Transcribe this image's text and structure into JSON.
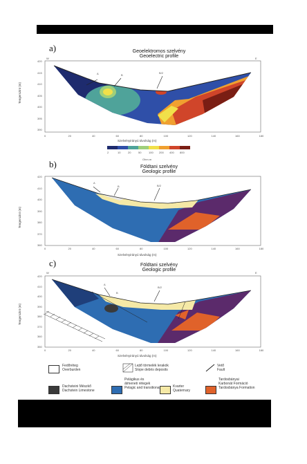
{
  "panels": [
    {
      "letter": "a)",
      "title_hu": "Geoelektromos szelvény",
      "title_en": "Geoelectric profile",
      "corner_left": "W",
      "corner_right": "E",
      "xlabel": "Szelvényirányú távolság (m)",
      "ylabel": "Tengerszint (m)",
      "y_ticks": [
        "420",
        "415",
        "410",
        "405",
        "400",
        "395",
        "390"
      ],
      "x_ticks": [
        "0",
        "20",
        "40",
        "60",
        "80",
        "100",
        "120",
        "140",
        "160",
        "180"
      ],
      "labels": [
        "A",
        "B",
        "B/2"
      ]
    },
    {
      "letter": "b)",
      "title_hu": "Földtani szelvény",
      "title_en": "Geologic profile",
      "xlabel": "Szelvényirányú távolság (m)",
      "ylabel": "Tengerszint (m)",
      "y_ticks": [
        "420",
        "410",
        "400",
        "390",
        "380",
        "370",
        "360"
      ],
      "x_ticks": [
        "0",
        "20",
        "40",
        "60",
        "80",
        "100",
        "120",
        "140",
        "160",
        "180"
      ],
      "labels": [
        "A",
        "B",
        "B/2"
      ]
    },
    {
      "letter": "c)",
      "title_hu": "Földtani szelvény",
      "title_en": "Geologic profile",
      "corner_left": "W",
      "corner_right": "E",
      "xlabel": "Szelvényirányú távolság (m)",
      "ylabel": "Tengerszint (m)",
      "y_ticks": [
        "420",
        "410",
        "400",
        "390",
        "380",
        "370",
        "360",
        "350"
      ],
      "x_ticks": [
        "0",
        "20",
        "40",
        "60",
        "80",
        "100",
        "120",
        "140",
        "160",
        "180"
      ],
      "labels": [
        "A",
        "B",
        "B/2"
      ]
    }
  ],
  "colorbar": {
    "unit": "Ohm.m",
    "ticks": [
      "2",
      "10",
      "20",
      "50",
      "100",
      "200",
      "400",
      "800"
    ],
    "colors": [
      "#1e2b6e",
      "#2f4fa8",
      "#4fa39a",
      "#9fcf7a",
      "#f1e04a",
      "#f0a030",
      "#d0452a",
      "#7a1e14"
    ]
  },
  "legend": [
    {
      "text": "Fedőréteg\nOverburden",
      "color": "#ffffff"
    },
    {
      "text": "Lejtő törmelék lerakók\nSlope debris deposits",
      "color": "#ffffff"
    },
    {
      "text": "Vető\nFault",
      "color": "#ffffff"
    },
    {
      "text": "Dachsteini Mészkő\nDachstein Limestone",
      "color": "#3a3a3a"
    },
    {
      "text": "Pelágikus és\nátmeneti rétegek\nPelagic and transitional",
      "color": "#2e6db2"
    },
    {
      "text": "Kvarter\nQuaternary",
      "color": "#f5e9a6"
    },
    {
      "text": "Tardosbányai\nKarbonát Formáció\nTardosbánya Formation",
      "color": "#e0622a"
    }
  ]
}
